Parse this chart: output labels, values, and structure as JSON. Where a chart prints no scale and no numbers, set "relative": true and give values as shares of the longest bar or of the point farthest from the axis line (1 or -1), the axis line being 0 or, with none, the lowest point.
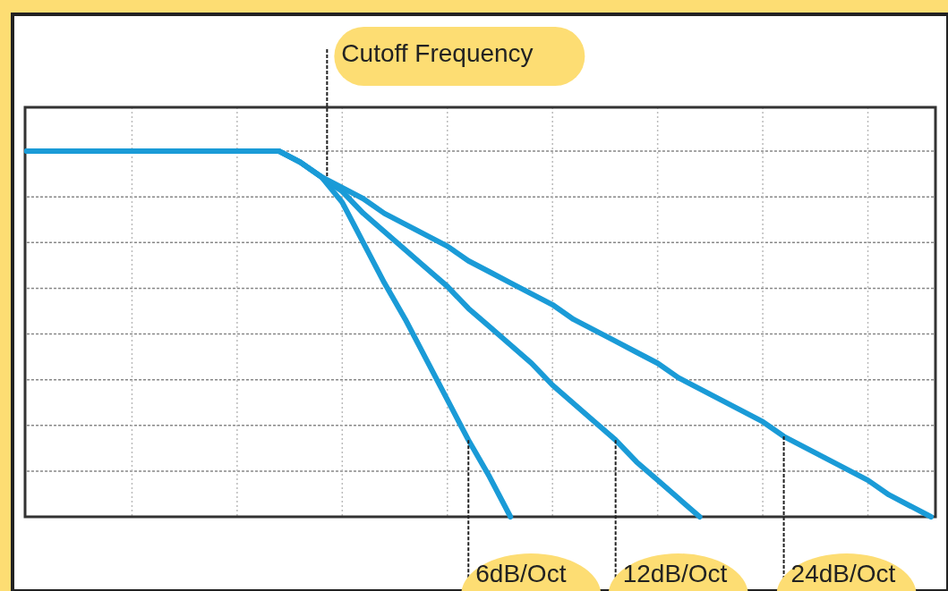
{
  "chart_data": {
    "type": "line",
    "relative": true,
    "grid": true,
    "annotations": [
      "Cutoff Frequency"
    ],
    "categories": [
      null,
      null,
      null,
      null,
      null,
      null,
      null,
      null,
      null,
      null,
      null,
      null,
      null,
      null,
      null,
      null,
      null,
      null,
      null,
      null,
      null,
      null,
      null,
      null,
      null,
      null,
      null,
      null,
      null,
      null,
      null,
      null,
      null,
      null,
      null,
      null,
      null,
      null,
      null,
      null,
      null,
      null,
      null,
      null
    ],
    "series": [
      {
        "name": "6dB/Oct",
        "color": "#1a9bd7",
        "values": [
          1,
          1,
          1,
          1,
          1,
          1,
          1,
          1,
          1,
          1,
          1,
          1,
          1,
          0.97,
          0.93,
          0.86,
          0.75,
          0.64,
          0.54,
          0.43,
          0.32,
          0.21,
          0.11,
          0,
          null,
          null,
          null,
          null,
          null,
          null,
          null,
          null,
          null,
          null,
          null,
          null,
          null,
          null,
          null,
          null,
          null,
          null,
          null,
          null
        ]
      },
      {
        "name": "12dB/Oct",
        "color": "#1a9bd7",
        "values": [
          1,
          1,
          1,
          1,
          1,
          1,
          1,
          1,
          1,
          1,
          1,
          1,
          1,
          0.97,
          0.93,
          0.89,
          0.83,
          0.78,
          0.73,
          0.68,
          0.63,
          0.57,
          0.52,
          0.47,
          0.42,
          0.36,
          0.31,
          0.26,
          0.21,
          0.15,
          0.1,
          0.05,
          0,
          null,
          null,
          null,
          null,
          null,
          null,
          null,
          null,
          null,
          null,
          null
        ]
      },
      {
        "name": "24dB/Oct",
        "color": "#1a9bd7",
        "values": [
          1,
          1,
          1,
          1,
          1,
          1,
          1,
          1,
          1,
          1,
          1,
          1,
          1,
          0.97,
          0.93,
          0.9,
          0.87,
          0.83,
          0.8,
          0.77,
          0.74,
          0.7,
          0.67,
          0.64,
          0.61,
          0.58,
          0.54,
          0.51,
          0.48,
          0.45,
          0.42,
          0.38,
          0.35,
          0.32,
          0.29,
          0.26,
          0.22,
          0.19,
          0.16,
          0.13,
          0.1,
          0.06,
          0.03,
          0
        ]
      }
    ]
  }
}
